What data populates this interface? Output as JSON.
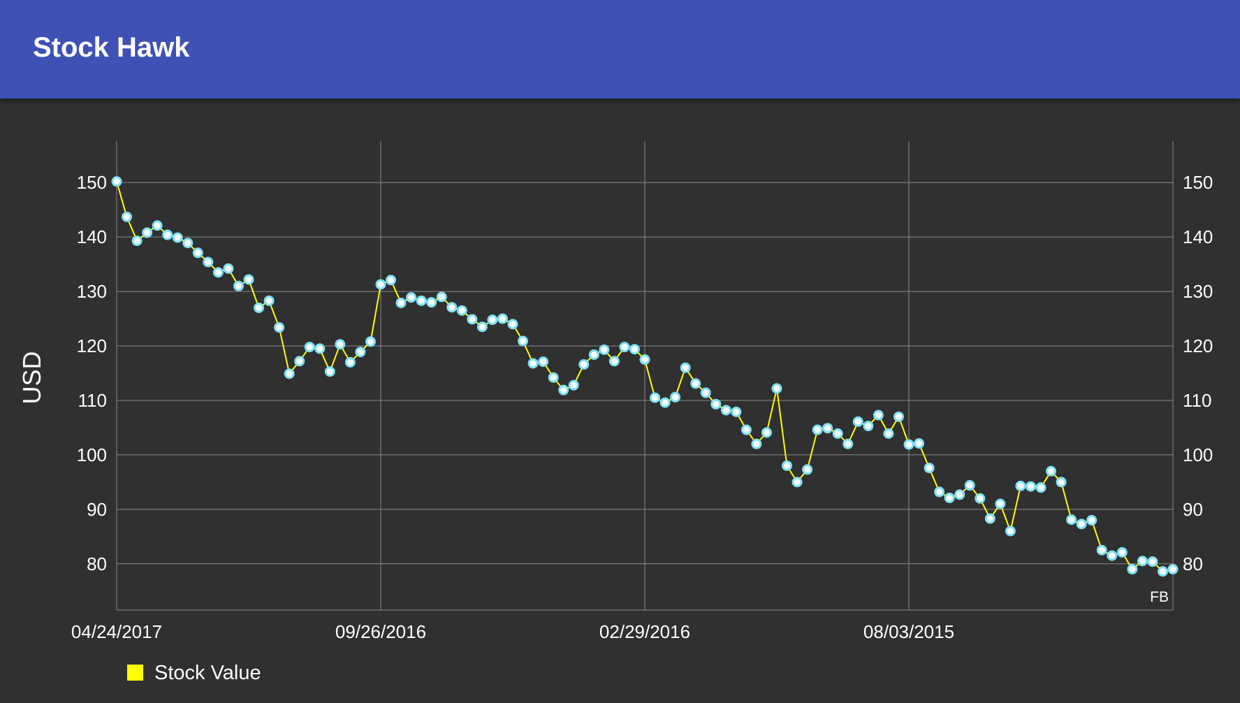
{
  "app": {
    "title": "Stock Hawk"
  },
  "colors": {
    "app_bar": "#3F51B5",
    "background": "#303030",
    "grid": "#8a8a8a",
    "line": "#FFFF00",
    "point_fill": "#FFFFFF",
    "point_ring": "#7FE0F5",
    "text": "#FFFFFF"
  },
  "chart_data": {
    "type": "line",
    "ylabel": "USD",
    "ylim": [
      71.5,
      157.6
    ],
    "yticks": [
      80,
      90,
      100,
      110,
      120,
      130,
      140,
      150
    ],
    "x_labels": [
      "04/24/2017",
      "09/26/2016",
      "02/29/2016",
      "08/03/2015"
    ],
    "legend": {
      "label": "Stock Value",
      "position": "bottom-left"
    },
    "description_label": "FB",
    "grid": true,
    "series": [
      {
        "name": "Stock Value",
        "values": [
          150.2,
          143.7,
          139.3,
          140.8,
          142.1,
          140.4,
          139.9,
          138.9,
          137.1,
          135.4,
          133.5,
          134.2,
          131.0,
          132.2,
          127.0,
          128.3,
          123.4,
          114.9,
          117.2,
          119.8,
          119.5,
          115.3,
          120.3,
          117.0,
          118.9,
          120.8,
          131.3,
          132.1,
          127.9,
          128.9,
          128.3,
          128.0,
          129.0,
          127.1,
          126.5,
          124.9,
          123.5,
          124.8,
          125.0,
          124.0,
          120.9,
          116.8,
          117.1,
          114.2,
          111.9,
          112.8,
          116.6,
          118.4,
          119.3,
          117.2,
          119.8,
          119.4,
          117.5,
          110.5,
          109.6,
          110.6,
          116.0,
          113.1,
          111.4,
          109.3,
          108.2,
          107.9,
          104.6,
          102.0,
          104.1,
          112.2,
          98.0,
          95.0,
          97.3,
          104.6,
          104.9,
          103.9,
          102.0,
          106.1,
          105.3,
          107.3,
          103.9,
          107.0,
          101.9,
          102.1,
          97.6,
          93.2,
          92.1,
          92.7,
          94.4,
          92.0,
          88.3,
          91.0,
          86.0,
          94.3,
          94.2,
          94.0,
          97.0,
          95.0,
          88.1,
          87.3,
          88.0,
          82.5,
          81.5,
          82.1,
          79.0,
          80.5,
          80.4,
          78.6,
          79.0
        ]
      }
    ]
  }
}
